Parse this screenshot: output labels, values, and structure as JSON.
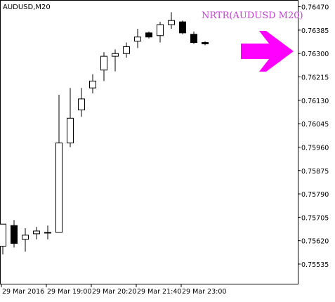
{
  "chart_data": {
    "type": "candlestick",
    "symbol_label": "AUDUSD,M20",
    "annotation": "NRTR(AUDUSD M20)",
    "annotation_color": "#c040d0",
    "arrow_color": "#ff00ff",
    "arrow_icon": "right-arrow-icon",
    "bull_fill": "#ffffff",
    "bear_fill": "#000000",
    "candle_stroke": "#000000",
    "ylim": [
      0.754635,
      0.764945
    ],
    "y_ticks": [
      "0.76470",
      "0.76385",
      "0.76300",
      "0.76215",
      "0.76130",
      "0.76045",
      "0.75960",
      "0.75875",
      "0.75790",
      "0.75705",
      "0.75620",
      "0.75535"
    ],
    "x_ticks": [
      "29 Mar 2016",
      "29 Mar 19:00",
      "29 Mar 20:20",
      "29 Mar 21:40",
      "29 Mar 23:00"
    ],
    "grid": false,
    "candles": [
      {
        "o": 0.756,
        "h": 0.7568,
        "l": 0.7557,
        "c": 0.7568
      },
      {
        "o": 0.75675,
        "h": 0.75695,
        "l": 0.75595,
        "c": 0.7561
      },
      {
        "o": 0.75625,
        "h": 0.75665,
        "l": 0.7558,
        "c": 0.7564
      },
      {
        "o": 0.75645,
        "h": 0.7567,
        "l": 0.75625,
        "c": 0.75655
      },
      {
        "o": 0.7565,
        "h": 0.75675,
        "l": 0.75625,
        "c": 0.7565
      },
      {
        "o": 0.7565,
        "h": 0.7615,
        "l": 0.7565,
        "c": 0.75975
      },
      {
        "o": 0.75975,
        "h": 0.76175,
        "l": 0.7596,
        "c": 0.76065
      },
      {
        "o": 0.76095,
        "h": 0.76175,
        "l": 0.7607,
        "c": 0.76135
      },
      {
        "o": 0.76175,
        "h": 0.76225,
        "l": 0.76155,
        "c": 0.762
      },
      {
        "o": 0.7624,
        "h": 0.76305,
        "l": 0.762,
        "c": 0.7629
      },
      {
        "o": 0.7629,
        "h": 0.76315,
        "l": 0.76235,
        "c": 0.763
      },
      {
        "o": 0.763,
        "h": 0.7634,
        "l": 0.76285,
        "c": 0.76325
      },
      {
        "o": 0.76345,
        "h": 0.7639,
        "l": 0.7632,
        "c": 0.7636
      },
      {
        "o": 0.76375,
        "h": 0.7638,
        "l": 0.76355,
        "c": 0.7636
      },
      {
        "o": 0.76365,
        "h": 0.76415,
        "l": 0.7634,
        "c": 0.76405
      },
      {
        "o": 0.76405,
        "h": 0.7645,
        "l": 0.7639,
        "c": 0.7642
      },
      {
        "o": 0.76415,
        "h": 0.7642,
        "l": 0.7637,
        "c": 0.76375
      },
      {
        "o": 0.7637,
        "h": 0.7638,
        "l": 0.76335,
        "c": 0.7634
      },
      {
        "o": 0.7634,
        "h": 0.76345,
        "l": 0.7633,
        "c": 0.76335
      }
    ]
  }
}
